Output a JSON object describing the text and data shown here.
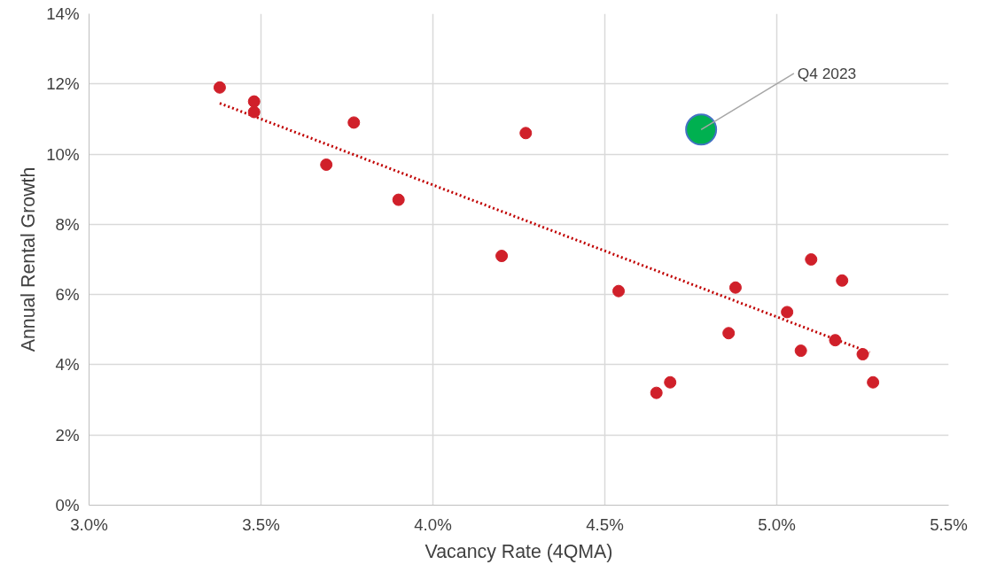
{
  "chart_data": {
    "type": "scatter",
    "xlabel": "Vacancy Rate (4QMA)",
    "ylabel": "Annual Rental Growth",
    "xlim": [
      3.0,
      5.5
    ],
    "ylim": [
      0,
      14
    ],
    "xticks": [
      {
        "value": 3.0,
        "label": "3.0%"
      },
      {
        "value": 3.5,
        "label": "3.5%"
      },
      {
        "value": 4.0,
        "label": "4.0%"
      },
      {
        "value": 4.5,
        "label": "4.5%"
      },
      {
        "value": 5.0,
        "label": "5.0%"
      },
      {
        "value": 5.5,
        "label": "5.5%"
      }
    ],
    "yticks": [
      {
        "value": 0,
        "label": "0%"
      },
      {
        "value": 2,
        "label": "2%"
      },
      {
        "value": 4,
        "label": "4%"
      },
      {
        "value": 6,
        "label": "6%"
      },
      {
        "value": 8,
        "label": "8%"
      },
      {
        "value": 10,
        "label": "10%"
      },
      {
        "value": 12,
        "label": "12%"
      },
      {
        "value": 14,
        "label": "14%"
      }
    ],
    "grid": true,
    "marker": "circle",
    "series": [
      {
        "type": "line",
        "marker": "none",
        "line_style": "dotted",
        "color": "#c00000",
        "x": [
          3.38,
          5.27
        ],
        "values": [
          11.45,
          4.35
        ]
      },
      {
        "color": "#d0202a",
        "x": [
          3.38,
          3.48,
          3.48,
          3.69,
          3.77,
          3.9,
          4.2,
          4.27,
          4.54,
          4.65,
          4.69,
          4.86,
          4.88,
          5.03,
          5.07,
          5.1,
          5.17,
          5.19,
          5.25,
          5.28
        ],
        "values": [
          11.9,
          11.5,
          11.2,
          9.7,
          10.9,
          8.7,
          7.1,
          10.6,
          6.1,
          3.2,
          3.5,
          4.9,
          6.2,
          5.5,
          4.4,
          7.0,
          4.7,
          6.4,
          4.3,
          3.5
        ]
      },
      {
        "color": "#00b050",
        "x": [
          4.78
        ],
        "values": [
          10.7
        ]
      }
    ],
    "annotations": [
      {
        "text": "Q4 2023",
        "x": 4.78,
        "y": 10.7
      }
    ]
  }
}
